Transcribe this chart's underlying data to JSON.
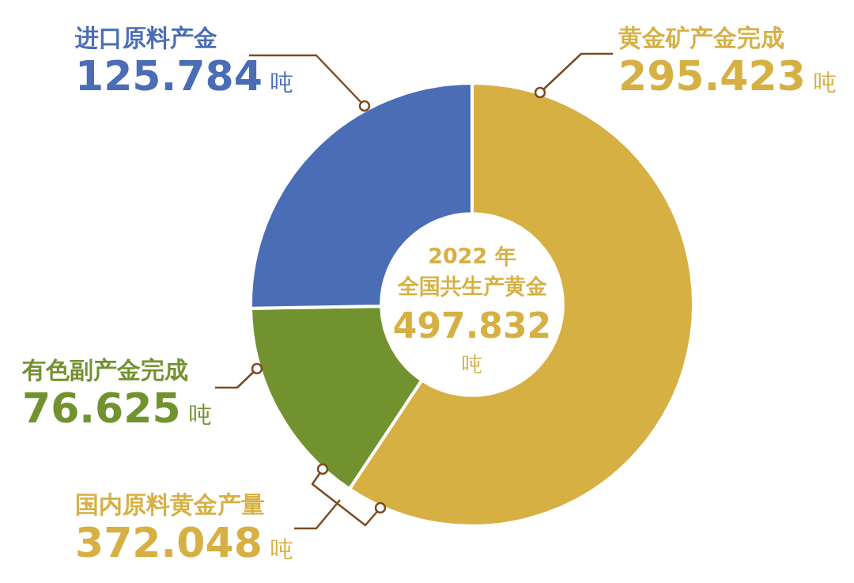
{
  "chart_data": {
    "type": "donut",
    "subtitle": "2022 年",
    "title": "全国共生产黄金",
    "categories": [
      "黄金矿产金完成",
      "有色副产金完成",
      "进口原料产金"
    ],
    "values": [
      295.423,
      76.625,
      125.784
    ],
    "value_labels": [
      "295.423 吨",
      "76.625 吨",
      "125.784 吨"
    ],
    "colors": [
      "#d6b043",
      "#72922f",
      "#4a6db5"
    ],
    "annotations": [
      "497.832 吨",
      "国内原料黄金产量 372.048 吨"
    ],
    "legend": false
  }
}
